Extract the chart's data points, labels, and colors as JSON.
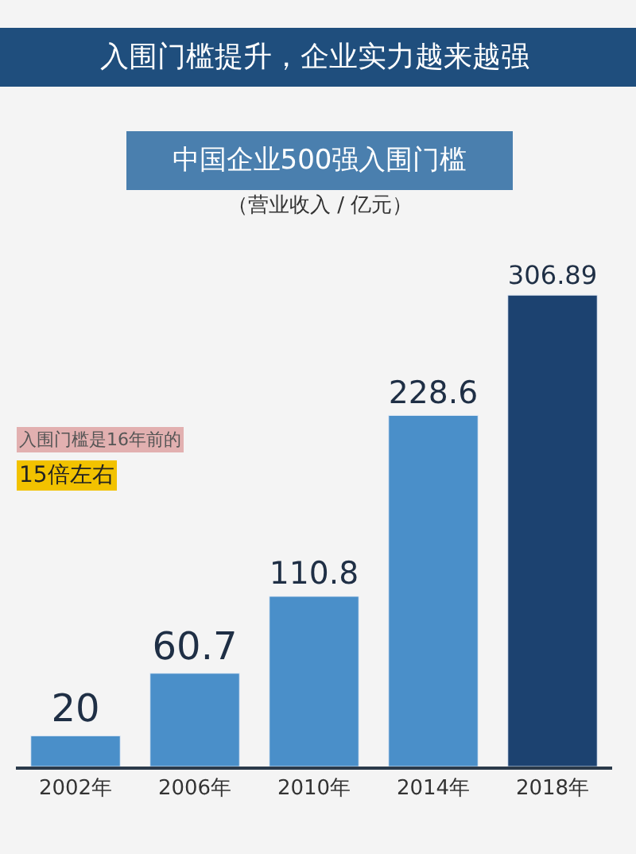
{
  "chart_data": {
    "type": "bar",
    "title": "入围门槛提升，企业实力越来越强",
    "subtitle": "中国企业500强入围门槛",
    "annotations": [
      "（营业收入 / 亿元）",
      "入围门槛是16年前的",
      "15倍左右"
    ],
    "categories": [
      "2002年",
      "2006年",
      "2010年",
      "2014年",
      "2018年"
    ],
    "values": [
      20,
      60.7,
      110.8,
      228.6,
      306.89
    ],
    "colors": [
      "#4a8fc9",
      "#4a8fc9",
      "#4a8fc9",
      "#4a8fc9",
      "#1c4270"
    ],
    "data_labels": true,
    "grid": false,
    "legend": false
  }
}
